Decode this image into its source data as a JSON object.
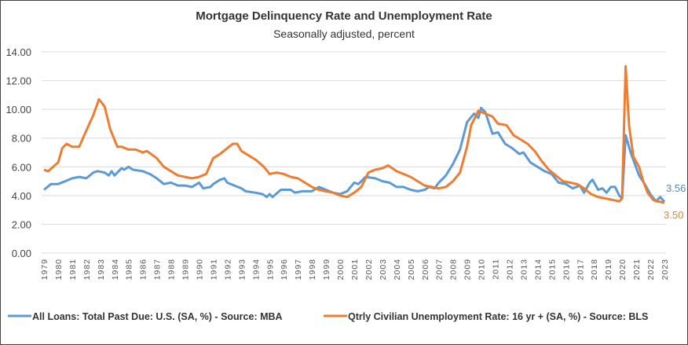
{
  "chart_data": {
    "type": "line",
    "title": "Mortgage Delinquency Rate and Unemployment Rate",
    "subtitle": "Seasonally adjusted, percent",
    "xlabel": "",
    "ylabel": "",
    "ylim": [
      0,
      14
    ],
    "xlim": [
      1979,
      2023
    ],
    "grid": true,
    "legend_position": "bottom",
    "yticks": [
      "0.00",
      "2.00",
      "4.00",
      "6.00",
      "8.00",
      "10.00",
      "12.00",
      "14.00"
    ],
    "xticks": [
      "1979",
      "1980",
      "1981",
      "1982",
      "1983",
      "1984",
      "1985",
      "1986",
      "1987",
      "1988",
      "1989",
      "1990",
      "1991",
      "1992",
      "1993",
      "1994",
      "1995",
      "1996",
      "1997",
      "1998",
      "1999",
      "2000",
      "2001",
      "2002",
      "2003",
      "2004",
      "2005",
      "2006",
      "2007",
      "2008",
      "2009",
      "2010",
      "2011",
      "2012",
      "2013",
      "2014",
      "2015",
      "2016",
      "2017",
      "2018",
      "2019",
      "2020",
      "2021",
      "2022",
      "2023"
    ],
    "series": [
      {
        "name": "All Loans: Total Past Due: U.S. (SA, %) - Source: MBA",
        "color": "#5b9bd5",
        "end_label": "3.56",
        "x": [
          1979,
          1979.5,
          1980,
          1980.5,
          1981,
          1981.5,
          1982,
          1982.5,
          1982.8,
          1983.3,
          1983.6,
          1983.8,
          1984,
          1984.5,
          1984.7,
          1985,
          1985.3,
          1986,
          1986.5,
          1987,
          1987.5,
          1988,
          1988.5,
          1989,
          1989.5,
          1990,
          1990.3,
          1990.8,
          1991,
          1991.5,
          1991.8,
          1992,
          1992.5,
          1993,
          1993.3,
          1994,
          1994.5,
          1994.8,
          1995,
          1995.2,
          1995.8,
          1996.5,
          1996.8,
          1997.3,
          1998,
          1998.5,
          1999,
          1999.5,
          2000,
          2000.5,
          2001,
          2001.3,
          2001.8,
          2002.5,
          2003,
          2003.5,
          2004,
          2004.5,
          2005,
          2005.5,
          2006,
          2006.3,
          2006.7,
          2007,
          2007.5,
          2008,
          2008.5,
          2009,
          2009.5,
          2009.8,
          2010,
          2010.3,
          2010.8,
          2011.2,
          2011.7,
          2012.2,
          2012.7,
          2013,
          2013.5,
          2014,
          2014.5,
          2015,
          2015.5,
          2016,
          2016.5,
          2017,
          2017.3,
          2017.7,
          2017.9,
          2018.3,
          2018.6,
          2018.9,
          2019.2,
          2019.5,
          2019.8,
          2020,
          2020.25,
          2020.6,
          2020.9,
          2021.2,
          2021.6,
          2022,
          2022.4,
          2022.7,
          2023
        ],
        "y": [
          4.4,
          4.8,
          4.8,
          5.0,
          5.2,
          5.3,
          5.2,
          5.6,
          5.7,
          5.6,
          5.4,
          5.7,
          5.4,
          5.9,
          5.8,
          6.0,
          5.8,
          5.7,
          5.5,
          5.2,
          4.8,
          4.9,
          4.7,
          4.7,
          4.6,
          4.9,
          4.5,
          4.6,
          4.8,
          5.1,
          5.2,
          4.9,
          4.7,
          4.5,
          4.3,
          4.2,
          4.1,
          3.9,
          4.1,
          3.9,
          4.4,
          4.4,
          4.2,
          4.3,
          4.3,
          4.6,
          4.4,
          4.2,
          4.1,
          4.3,
          4.9,
          4.8,
          5.3,
          5.2,
          5.0,
          4.9,
          4.6,
          4.6,
          4.4,
          4.3,
          4.4,
          4.6,
          4.5,
          4.9,
          5.4,
          6.2,
          7.2,
          9.1,
          9.7,
          9.4,
          10.1,
          9.8,
          8.3,
          8.4,
          7.6,
          7.3,
          6.9,
          7.0,
          6.3,
          6.0,
          5.7,
          5.5,
          4.9,
          4.8,
          4.5,
          4.7,
          4.2,
          4.9,
          5.1,
          4.4,
          4.5,
          4.2,
          4.6,
          4.6,
          4.0,
          3.8,
          8.2,
          7.0,
          6.2,
          5.4,
          4.8,
          4.1,
          3.6,
          3.9,
          3.56
        ]
      },
      {
        "name": "Qtrly Civilian Unemployment Rate: 16 yr + (SA, %) - Source: BLS",
        "color": "#ed7d31",
        "end_label": "3.50",
        "x": [
          1979,
          1979.3,
          1980,
          1980.3,
          1980.6,
          1981,
          1981.5,
          1981.9,
          1982.5,
          1982.9,
          1983.3,
          1983.7,
          1984.2,
          1984.5,
          1985,
          1985.5,
          1986,
          1986.3,
          1987,
          1987.5,
          1988,
          1988.5,
          1989,
          1989.5,
          1990,
          1990.5,
          1991,
          1991.5,
          1992,
          1992.4,
          1992.7,
          1993,
          1993.5,
          1994,
          1994.6,
          1995,
          1995.5,
          1996,
          1996.5,
          1997,
          1997.5,
          1998,
          1998.5,
          1999,
          1999.5,
          2000,
          2000.5,
          2001,
          2001.5,
          2002,
          2002.5,
          2003,
          2003.4,
          2004,
          2004.5,
          2005,
          2005.5,
          2006,
          2006.5,
          2007,
          2007.5,
          2008,
          2008.5,
          2009,
          2009.3,
          2009.8,
          2010.3,
          2010.8,
          2011.2,
          2011.8,
          2012.3,
          2012.8,
          2013.3,
          2013.8,
          2014.3,
          2014.8,
          2015.3,
          2015.8,
          2016.3,
          2016.8,
          2017.3,
          2017.8,
          2018.3,
          2018.8,
          2019.3,
          2019.8,
          2020,
          2020.25,
          2020.5,
          2020.8,
          2021.2,
          2021.5,
          2021.8,
          2022.2,
          2022.5,
          2023
        ],
        "y": [
          5.8,
          5.7,
          6.3,
          7.3,
          7.6,
          7.4,
          7.4,
          8.3,
          9.6,
          10.7,
          10.2,
          8.6,
          7.4,
          7.4,
          7.2,
          7.2,
          7.0,
          7.1,
          6.6,
          6.0,
          5.7,
          5.4,
          5.3,
          5.2,
          5.3,
          5.5,
          6.6,
          6.9,
          7.3,
          7.6,
          7.6,
          7.1,
          6.8,
          6.5,
          6.0,
          5.5,
          5.6,
          5.5,
          5.3,
          5.2,
          4.9,
          4.6,
          4.4,
          4.3,
          4.2,
          4.0,
          3.9,
          4.2,
          4.6,
          5.6,
          5.8,
          5.9,
          6.1,
          5.7,
          5.5,
          5.3,
          5.0,
          4.7,
          4.6,
          4.5,
          4.6,
          5.0,
          5.6,
          7.4,
          8.9,
          9.9,
          9.7,
          9.5,
          9.0,
          8.9,
          8.2,
          7.9,
          7.6,
          7.1,
          6.4,
          5.8,
          5.4,
          5.0,
          4.9,
          4.8,
          4.5,
          4.1,
          3.9,
          3.8,
          3.7,
          3.6,
          3.8,
          13.0,
          8.8,
          6.7,
          6.0,
          5.0,
          4.2,
          3.7,
          3.6,
          3.5
        ]
      }
    ]
  }
}
